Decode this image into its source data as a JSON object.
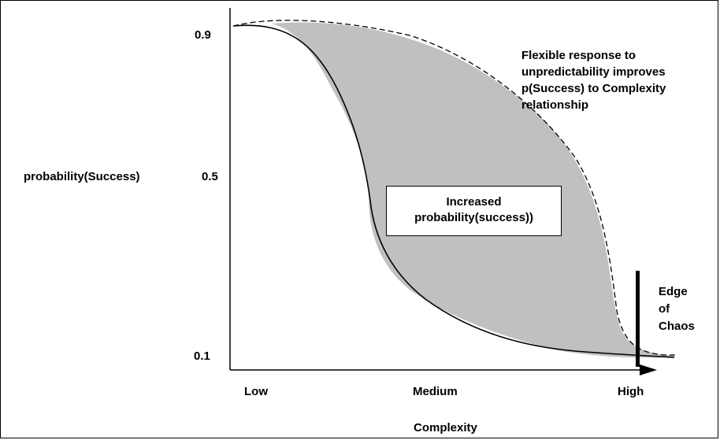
{
  "y_axis": {
    "label": "probability(Success)",
    "ticks": [
      "0.9",
      "0.5",
      "0.1"
    ]
  },
  "x_axis": {
    "label": "Complexity",
    "ticks": [
      "Low",
      "Medium",
      "High"
    ]
  },
  "annotation": "Flexible response to\nunpredictability improves\np(Success) to Complexity\nrelationship",
  "center_box": "Increased\nprobability(success))",
  "edge_label": "Edge\nof\nChaos",
  "colors": {
    "fill": "#c0c0c0",
    "line": "#000000"
  }
}
